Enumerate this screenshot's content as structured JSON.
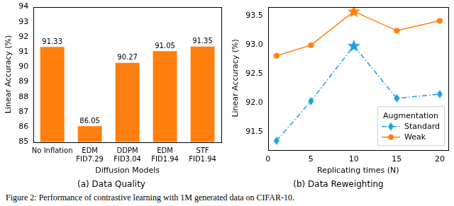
{
  "chart_data": [
    {
      "type": "bar",
      "title": "(a) Data Quality",
      "x_label": "Diffusion Models",
      "y_label": "Linear Accuracy (%)",
      "categories": [
        "No Inflation",
        "EDM\nFID7.29",
        "DDPM\nFID3.04",
        "EDM\nFID1.94",
        "STF\nFID1.94"
      ],
      "values": [
        91.33,
        86.05,
        90.27,
        91.05,
        91.35
      ],
      "color": "#ff7f0e",
      "ylim": [
        85,
        94
      ],
      "yticks": [
        85,
        86,
        87,
        88,
        89,
        90,
        91,
        92,
        93,
        94
      ],
      "grid": false,
      "data_labels": true
    },
    {
      "type": "line",
      "title": "(b) Data Reweighting",
      "x_label": "Replicating times (N)",
      "y_label": "Linear Accuracy (%)",
      "x": [
        1,
        5,
        10,
        15,
        20
      ],
      "series": [
        {
          "name": "Standard",
          "color": "#1f9fe0",
          "line_style": "dashdot",
          "marker": [
            "diamond",
            "diamond",
            "star",
            "diamond",
            "diamond"
          ],
          "values": [
            91.35,
            92.03,
            92.98,
            92.08,
            92.15
          ]
        },
        {
          "name": "Weak",
          "color": "#ff7f0e",
          "line_style": "solid",
          "marker": [
            "circle",
            "circle",
            "star",
            "circle",
            "circle"
          ],
          "values": [
            92.81,
            92.99,
            93.57,
            93.24,
            93.41
          ]
        }
      ],
      "xlim": [
        0,
        21
      ],
      "xticks": [
        0,
        5,
        10,
        15,
        20
      ],
      "ylim": [
        91.2,
        93.65
      ],
      "yticks": [
        91.5,
        {
          "value": 92,
          "label": "92.0"
        },
        92.5,
        {
          "value": 93,
          "label": "93.0"
        },
        93.5
      ],
      "grid": false,
      "legend": "lower right",
      "legend_title": "Augmentation"
    }
  ],
  "caption": "Figure 2: Performance of contrastive learning with 1M generated data on CIFAR-10."
}
